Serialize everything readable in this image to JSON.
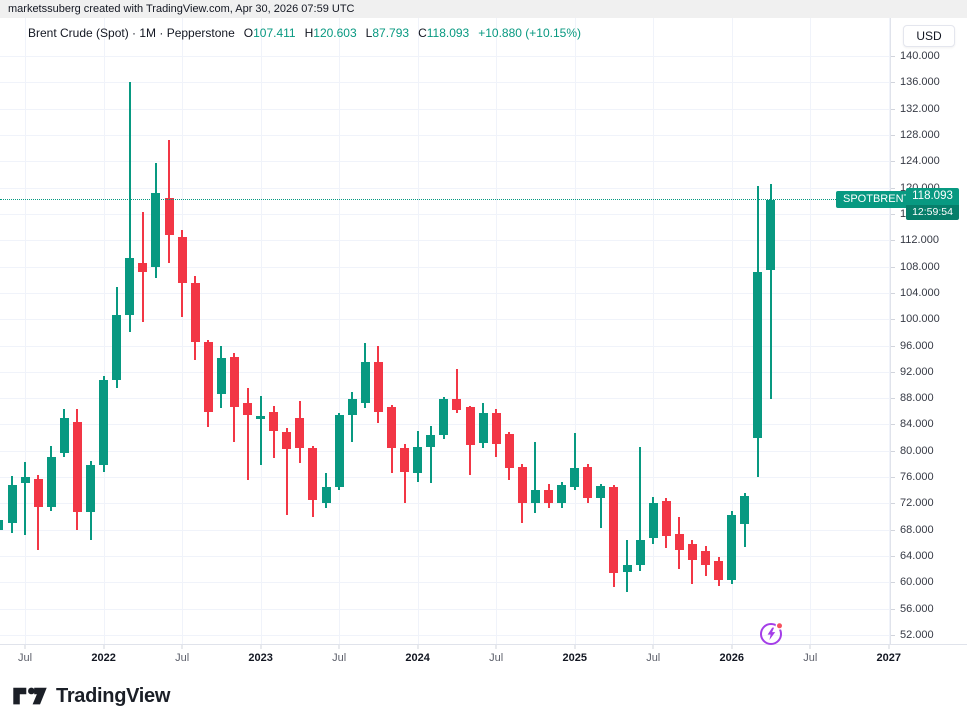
{
  "attribution": "marketssuberg created with TradingView.com, Apr 30, 2026 07:59 UTC",
  "legend": {
    "title": "Brent Crude (Spot) · 1M · Pepperstone",
    "open_label": "O",
    "open": "107.411",
    "high_label": "H",
    "high": "120.603",
    "low_label": "L",
    "low": "87.793",
    "close_label": "C",
    "close": "118.093",
    "change": "+10.880 (+10.15%)"
  },
  "price_axis": {
    "currency": "USD",
    "ticks": [
      "140.000",
      "136.000",
      "132.000",
      "128.000",
      "124.000",
      "120.000",
      "116.000",
      "112.000",
      "108.000",
      "104.000",
      "100.000",
      "96.000",
      "92.000",
      "88.000",
      "84.000",
      "80.000",
      "76.000",
      "72.000",
      "68.000",
      "64.000",
      "60.000",
      "56.000",
      "52.000"
    ]
  },
  "time_axis": {
    "ticks": [
      {
        "label": "Jul",
        "m": 2,
        "bold": false
      },
      {
        "label": "2022",
        "m": 8,
        "bold": true
      },
      {
        "label": "Jul",
        "m": 14,
        "bold": false
      },
      {
        "label": "2023",
        "m": 20,
        "bold": true
      },
      {
        "label": "Jul",
        "m": 26,
        "bold": false
      },
      {
        "label": "2024",
        "m": 32,
        "bold": true
      },
      {
        "label": "Jul",
        "m": 38,
        "bold": false
      },
      {
        "label": "2025",
        "m": 44,
        "bold": true
      },
      {
        "label": "Jul",
        "m": 50,
        "bold": false
      },
      {
        "label": "2026",
        "m": 56,
        "bold": true
      },
      {
        "label": "Jul",
        "m": 62,
        "bold": false
      },
      {
        "label": "2027",
        "m": 68,
        "bold": true
      }
    ]
  },
  "price_line": {
    "label": "SPOTBRENT",
    "price": "118.093",
    "countdown": "12:59:54",
    "value": 118.093
  },
  "colors": {
    "up": "#089981",
    "down": "#f23645",
    "accent": "#089981",
    "events_purple": "#a43ee8",
    "alert_red": "#f7525f"
  },
  "chart_data": {
    "type": "candlestick",
    "title": "Brent Crude (Spot)",
    "interval": "1M",
    "provider": "Pepperstone",
    "currency": "USD",
    "ylim": [
      52,
      140
    ],
    "y_tick_step": 4,
    "grid": true,
    "last_price": 118.093,
    "candles": [
      {
        "t": "2021-05",
        "o": 67.9,
        "h": 69.5,
        "l": 67.9,
        "c": 69.5
      },
      {
        "t": "2021-06",
        "o": 69.0,
        "h": 76.2,
        "l": 67.5,
        "c": 74.8
      },
      {
        "t": "2021-07",
        "o": 75.1,
        "h": 78.3,
        "l": 67.2,
        "c": 76.0
      },
      {
        "t": "2021-08",
        "o": 75.7,
        "h": 76.3,
        "l": 64.9,
        "c": 71.5
      },
      {
        "t": "2021-09",
        "o": 71.4,
        "h": 80.7,
        "l": 70.8,
        "c": 79.1
      },
      {
        "t": "2021-10",
        "o": 79.7,
        "h": 86.4,
        "l": 79.0,
        "c": 85.0
      },
      {
        "t": "2021-11",
        "o": 84.4,
        "h": 86.3,
        "l": 68.0,
        "c": 70.7
      },
      {
        "t": "2021-12",
        "o": 70.7,
        "h": 78.5,
        "l": 66.4,
        "c": 77.9
      },
      {
        "t": "2022-01",
        "o": 77.9,
        "h": 91.3,
        "l": 76.8,
        "c": 90.8
      },
      {
        "t": "2022-02",
        "o": 90.8,
        "h": 104.9,
        "l": 89.5,
        "c": 100.6
      },
      {
        "t": "2022-03",
        "o": 100.6,
        "h": 136.0,
        "l": 98.0,
        "c": 109.3
      },
      {
        "t": "2022-04",
        "o": 108.5,
        "h": 116.3,
        "l": 99.6,
        "c": 107.2
      },
      {
        "t": "2022-05",
        "o": 108.0,
        "h": 123.7,
        "l": 106.3,
        "c": 119.2
      },
      {
        "t": "2022-06",
        "o": 118.4,
        "h": 127.2,
        "l": 108.5,
        "c": 112.8
      },
      {
        "t": "2022-07",
        "o": 112.5,
        "h": 113.5,
        "l": 100.3,
        "c": 105.5
      },
      {
        "t": "2022-08",
        "o": 105.5,
        "h": 106.5,
        "l": 93.8,
        "c": 96.5
      },
      {
        "t": "2022-09",
        "o": 96.5,
        "h": 96.9,
        "l": 83.6,
        "c": 85.9
      },
      {
        "t": "2022-10",
        "o": 88.7,
        "h": 95.9,
        "l": 86.5,
        "c": 94.1
      },
      {
        "t": "2022-11",
        "o": 94.2,
        "h": 94.8,
        "l": 81.3,
        "c": 86.6
      },
      {
        "t": "2022-12",
        "o": 87.2,
        "h": 89.5,
        "l": 75.6,
        "c": 85.4
      },
      {
        "t": "2023-01",
        "o": 84.8,
        "h": 88.4,
        "l": 77.9,
        "c": 85.3
      },
      {
        "t": "2023-02",
        "o": 85.9,
        "h": 86.8,
        "l": 78.9,
        "c": 83.0
      },
      {
        "t": "2023-03",
        "o": 82.9,
        "h": 83.5,
        "l": 70.2,
        "c": 80.2
      },
      {
        "t": "2023-04",
        "o": 85.0,
        "h": 87.5,
        "l": 78.1,
        "c": 80.4
      },
      {
        "t": "2023-05",
        "o": 80.4,
        "h": 80.8,
        "l": 70.0,
        "c": 72.5
      },
      {
        "t": "2023-06",
        "o": 72.0,
        "h": 76.6,
        "l": 71.3,
        "c": 74.5
      },
      {
        "t": "2023-07",
        "o": 74.5,
        "h": 85.7,
        "l": 74.0,
        "c": 85.4
      },
      {
        "t": "2023-08",
        "o": 85.4,
        "h": 89.0,
        "l": 81.3,
        "c": 87.9
      },
      {
        "t": "2023-09",
        "o": 87.2,
        "h": 96.4,
        "l": 86.5,
        "c": 93.5
      },
      {
        "t": "2023-10",
        "o": 93.5,
        "h": 96.0,
        "l": 84.2,
        "c": 85.9
      },
      {
        "t": "2023-11",
        "o": 86.6,
        "h": 87.0,
        "l": 76.6,
        "c": 80.4
      },
      {
        "t": "2023-12",
        "o": 80.4,
        "h": 81.0,
        "l": 72.1,
        "c": 76.8
      },
      {
        "t": "2024-01",
        "o": 76.6,
        "h": 83.0,
        "l": 75.3,
        "c": 80.6
      },
      {
        "t": "2024-02",
        "o": 80.6,
        "h": 83.7,
        "l": 75.1,
        "c": 82.4
      },
      {
        "t": "2024-03",
        "o": 82.4,
        "h": 88.2,
        "l": 81.8,
        "c": 87.9
      },
      {
        "t": "2024-04",
        "o": 87.9,
        "h": 92.5,
        "l": 85.7,
        "c": 86.2
      },
      {
        "t": "2024-05",
        "o": 86.6,
        "h": 86.8,
        "l": 76.3,
        "c": 80.9
      },
      {
        "t": "2024-06",
        "o": 81.2,
        "h": 87.3,
        "l": 80.4,
        "c": 85.7
      },
      {
        "t": "2024-07",
        "o": 85.7,
        "h": 86.3,
        "l": 79.0,
        "c": 81.0
      },
      {
        "t": "2024-08",
        "o": 82.5,
        "h": 82.8,
        "l": 75.6,
        "c": 77.4
      },
      {
        "t": "2024-09",
        "o": 77.5,
        "h": 78.0,
        "l": 69.0,
        "c": 72.0
      },
      {
        "t": "2024-10",
        "o": 72.1,
        "h": 81.4,
        "l": 70.5,
        "c": 74.0
      },
      {
        "t": "2024-11",
        "o": 74.0,
        "h": 74.9,
        "l": 71.3,
        "c": 72.1
      },
      {
        "t": "2024-12",
        "o": 72.1,
        "h": 75.2,
        "l": 71.3,
        "c": 74.8
      },
      {
        "t": "2025-01",
        "o": 74.5,
        "h": 82.7,
        "l": 74.0,
        "c": 77.4
      },
      {
        "t": "2025-02",
        "o": 77.5,
        "h": 78.0,
        "l": 72.0,
        "c": 72.8
      },
      {
        "t": "2025-03",
        "o": 72.8,
        "h": 75.0,
        "l": 68.2,
        "c": 74.7
      },
      {
        "t": "2025-04",
        "o": 74.5,
        "h": 74.8,
        "l": 59.3,
        "c": 61.4
      },
      {
        "t": "2025-05",
        "o": 61.5,
        "h": 66.4,
        "l": 58.5,
        "c": 62.6
      },
      {
        "t": "2025-06",
        "o": 62.6,
        "h": 80.6,
        "l": 61.8,
        "c": 66.4
      },
      {
        "t": "2025-07",
        "o": 66.7,
        "h": 73.0,
        "l": 65.9,
        "c": 72.1
      },
      {
        "t": "2025-08",
        "o": 72.3,
        "h": 72.8,
        "l": 65.2,
        "c": 67.0
      },
      {
        "t": "2025-09",
        "o": 67.4,
        "h": 69.9,
        "l": 62.1,
        "c": 64.9
      },
      {
        "t": "2025-10",
        "o": 65.9,
        "h": 66.5,
        "l": 59.8,
        "c": 63.4
      },
      {
        "t": "2025-11",
        "o": 64.7,
        "h": 65.5,
        "l": 60.9,
        "c": 62.6
      },
      {
        "t": "2025-12",
        "o": 63.3,
        "h": 63.8,
        "l": 59.4,
        "c": 60.4
      },
      {
        "t": "2026-01",
        "o": 60.4,
        "h": 70.8,
        "l": 59.8,
        "c": 70.3
      },
      {
        "t": "2026-02",
        "o": 68.9,
        "h": 73.6,
        "l": 65.4,
        "c": 73.2
      },
      {
        "t": "2026-03",
        "o": 81.9,
        "h": 120.2,
        "l": 76.0,
        "c": 107.2
      },
      {
        "t": "2026-04",
        "o": 107.411,
        "h": 120.603,
        "l": 87.793,
        "c": 118.093
      }
    ]
  },
  "footer": {
    "logo_text": "TradingView"
  }
}
